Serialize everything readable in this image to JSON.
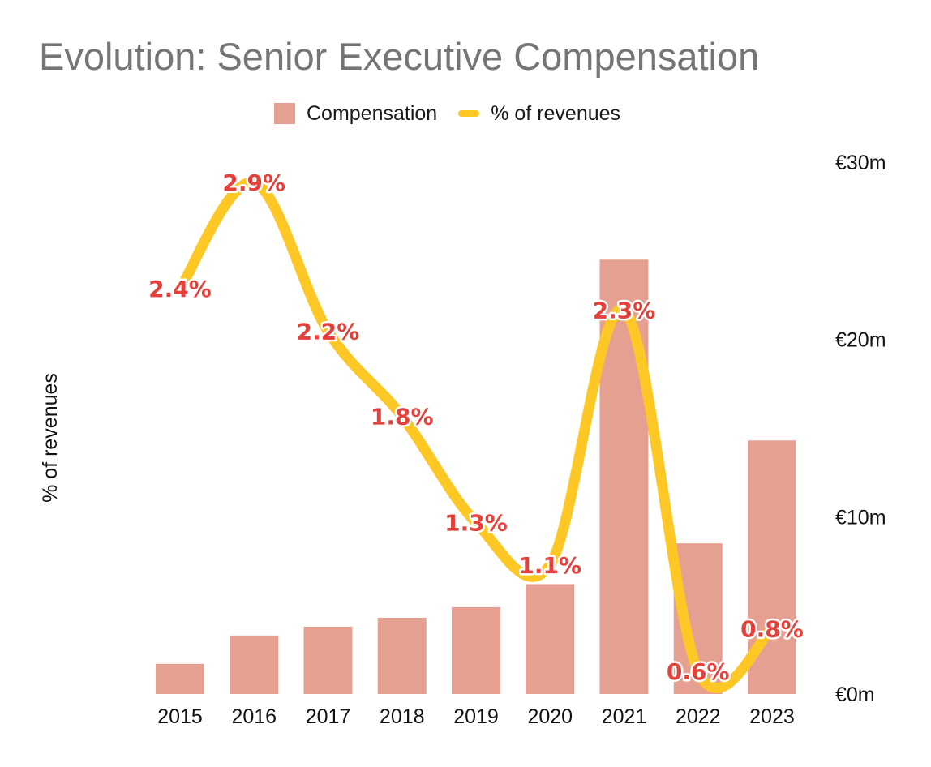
{
  "chart_data": {
    "type": "bar",
    "title": "Evolution: Senior Executive Compensation",
    "categories": [
      "2015",
      "2016",
      "2017",
      "2018",
      "2019",
      "2020",
      "2021",
      "2022",
      "2023"
    ],
    "series": [
      {
        "name": "Compensation",
        "kind": "bar",
        "axis": "right",
        "values": [
          1.7,
          3.3,
          3.8,
          4.3,
          4.9,
          6.2,
          24.5,
          8.5,
          14.3
        ],
        "color": "#e5a092"
      },
      {
        "name": "% of revenues",
        "kind": "line",
        "axis": "left",
        "smooth": true,
        "values": [
          2.4,
          2.9,
          2.2,
          1.8,
          1.3,
          1.1,
          2.3,
          0.6,
          0.8
        ],
        "labels": [
          "2.4%",
          "2.9%",
          "2.2%",
          "1.8%",
          "1.3%",
          "1.1%",
          "2.3%",
          "0.6%",
          "0.8%"
        ],
        "color": "#fdc726"
      }
    ],
    "ylabel": "% of revenues",
    "y2_ticks": [
      "€0m",
      "€10m",
      "€20m",
      "€30m"
    ],
    "y2lim": [
      0,
      30
    ],
    "grid": false,
    "legend": "top"
  }
}
